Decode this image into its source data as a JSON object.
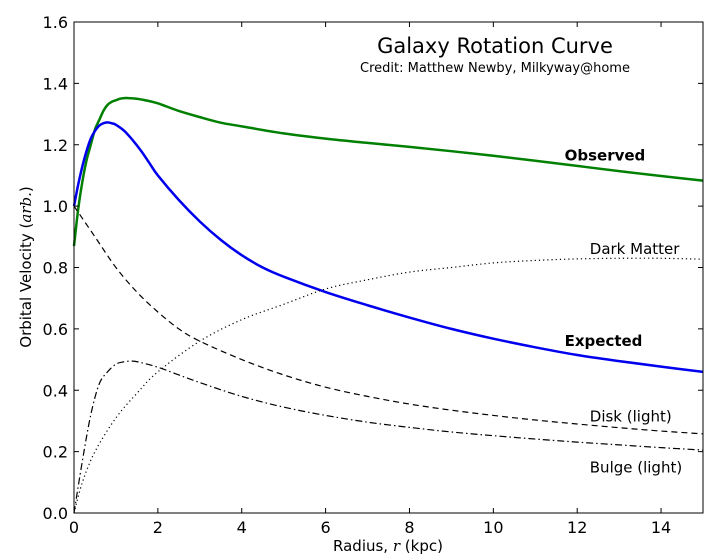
{
  "chart_data": {
    "type": "line",
    "title": "Galaxy Rotation Curve",
    "subtitle": "Credit:  Matthew Newby, Milkyway@home",
    "xlabel": "Radius, ",
    "xlabel_var": "r",
    "xlabel_unit": " (kpc)",
    "ylabel": "Orbital Velocity (",
    "ylabel_var": "arb.",
    "ylabel_end": ")",
    "xlim": [
      0,
      15
    ],
    "ylim": [
      0,
      1.6
    ],
    "xticks": [
      0,
      2,
      4,
      6,
      8,
      10,
      12,
      14
    ],
    "xtick_labels": [
      "0",
      "2",
      "4",
      "6",
      "8",
      "10",
      "12",
      "14"
    ],
    "yticks": [
      0,
      0.2,
      0.4,
      0.6,
      0.8,
      1.0,
      1.2,
      1.4,
      1.6
    ],
    "ytick_labels": [
      "0.0",
      "0.2",
      "0.4",
      "0.6",
      "0.8",
      "1.0",
      "1.2",
      "1.4",
      "1.6"
    ],
    "grid": false,
    "series": [
      {
        "name": "Observed",
        "color": "#008000",
        "style": "solid",
        "width": 2.5,
        "x": [
          0,
          0.1,
          0.2,
          0.3,
          0.4,
          0.5,
          0.6,
          0.7,
          0.8,
          0.9,
          1.0,
          1.1,
          1.2,
          1.3,
          1.4,
          1.5,
          1.7,
          2.0,
          2.5,
          3,
          3.5,
          4,
          5,
          6,
          7,
          8,
          9,
          10,
          11,
          12,
          13,
          14,
          15
        ],
        "y": [
          0.87,
          0.99,
          1.08,
          1.15,
          1.2,
          1.25,
          1.28,
          1.31,
          1.33,
          1.34,
          1.345,
          1.35,
          1.352,
          1.352,
          1.351,
          1.35,
          1.345,
          1.335,
          1.31,
          1.29,
          1.272,
          1.26,
          1.237,
          1.22,
          1.206,
          1.193,
          1.179,
          1.164,
          1.148,
          1.131,
          1.114,
          1.098,
          1.083
        ]
      },
      {
        "name": "Expected",
        "color": "#0000ee",
        "style": "solid",
        "width": 2.5,
        "x": [
          0,
          0.1,
          0.2,
          0.3,
          0.4,
          0.5,
          0.6,
          0.7,
          0.8,
          0.9,
          1.0,
          1.2,
          1.4,
          1.6,
          1.8,
          2.0,
          2.5,
          3,
          3.5,
          4,
          4.5,
          5,
          6,
          7,
          8,
          9,
          10,
          11,
          12,
          13,
          14,
          15
        ],
        "y": [
          1.0,
          1.07,
          1.13,
          1.18,
          1.22,
          1.245,
          1.262,
          1.27,
          1.273,
          1.27,
          1.265,
          1.245,
          1.215,
          1.18,
          1.14,
          1.1,
          1.02,
          0.95,
          0.89,
          0.84,
          0.8,
          0.77,
          0.72,
          0.677,
          0.637,
          0.6,
          0.568,
          0.54,
          0.515,
          0.495,
          0.477,
          0.46
        ]
      },
      {
        "name": "Dark Matter",
        "color": "#000000",
        "style": "dotted",
        "width": 1.2,
        "x": [
          0,
          0.2,
          0.5,
          1,
          1.5,
          2,
          3,
          4,
          5,
          6,
          7,
          8,
          9,
          10,
          11,
          12,
          13,
          14,
          15
        ],
        "y": [
          0.0,
          0.1,
          0.2,
          0.31,
          0.39,
          0.46,
          0.56,
          0.63,
          0.68,
          0.73,
          0.76,
          0.785,
          0.8,
          0.815,
          0.823,
          0.828,
          0.83,
          0.83,
          0.827
        ]
      },
      {
        "name": "Disk (light)",
        "color": "#000000",
        "style": "dashed",
        "width": 1.2,
        "x": [
          0,
          0.5,
          1,
          1.5,
          2,
          2.5,
          3,
          4,
          5,
          6,
          7,
          8,
          9,
          10,
          11,
          12,
          13,
          14,
          15
        ],
        "y": [
          1.0,
          0.9,
          0.8,
          0.72,
          0.655,
          0.6,
          0.56,
          0.5,
          0.45,
          0.41,
          0.38,
          0.355,
          0.335,
          0.318,
          0.303,
          0.29,
          0.278,
          0.267,
          0.258
        ]
      },
      {
        "name": "Bulge (light)",
        "color": "#000000",
        "style": "dashdot",
        "width": 1.2,
        "x": [
          0,
          0.2,
          0.4,
          0.6,
          0.8,
          1.0,
          1.2,
          1.4,
          1.6,
          2.0,
          2.5,
          3,
          4,
          5,
          6,
          7,
          8,
          9,
          10,
          11,
          12,
          13,
          14,
          15
        ],
        "y": [
          0.0,
          0.17,
          0.32,
          0.42,
          0.46,
          0.485,
          0.493,
          0.495,
          0.49,
          0.475,
          0.45,
          0.425,
          0.38,
          0.345,
          0.318,
          0.296,
          0.279,
          0.264,
          0.252,
          0.241,
          0.231,
          0.222,
          0.213,
          0.205
        ]
      }
    ],
    "annotations": [
      {
        "text": "Observed",
        "bold": true,
        "x": 11.7,
        "y": 1.165
      },
      {
        "text": "Dark Matter",
        "bold": false,
        "x": 12.3,
        "y": 0.86
      },
      {
        "text": "Expected",
        "bold": true,
        "x": 11.7,
        "y": 0.56
      },
      {
        "text": "Disk (light)",
        "bold": false,
        "x": 12.3,
        "y": 0.315
      },
      {
        "text": "Bulge (light)",
        "bold": false,
        "x": 12.3,
        "y": 0.148
      }
    ]
  }
}
